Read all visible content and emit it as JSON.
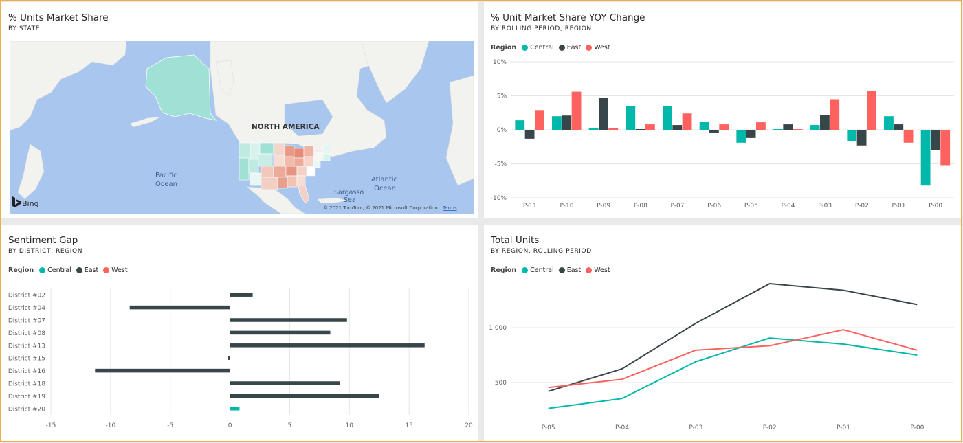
{
  "colors": {
    "central": "#01b8aa",
    "east": "#374649",
    "west": "#fd625e",
    "grid": "#e6e6e6",
    "axis_text": "#605e5c",
    "ocean": "#a8c6ee",
    "land": "#f2f2ef"
  },
  "map_tile": {
    "title": "% Units Market Share",
    "subtitle": "BY STATE",
    "labels": {
      "continent": "NORTH AMERICA",
      "pacific": [
        "Pacific",
        "Ocean"
      ],
      "atlantic": [
        "Atlantic",
        "Ocean"
      ],
      "sargasso": [
        "Sargasso",
        "Sea"
      ]
    },
    "brand": "Bing",
    "attribution": "© 2021 TomTom, © 2021 Microsoft Corporation",
    "terms": "Terms"
  },
  "legend": {
    "title": "Region",
    "items": [
      "Central",
      "East",
      "West"
    ]
  },
  "yoy_tile": {
    "title": "% Unit Market Share YOY Change",
    "subtitle": "BY ROLLING PERIOD, REGION"
  },
  "sentiment_tile": {
    "title": "Sentiment Gap",
    "subtitle": "BY DISTRICT, REGION"
  },
  "units_tile": {
    "title": "Total Units",
    "subtitle": "BY REGION, ROLLING PERIOD"
  },
  "chart_data": [
    {
      "id": "yoy",
      "type": "bar",
      "title": "% Unit Market Share YOY Change",
      "subtitle": "BY ROLLING PERIOD, REGION",
      "categories": [
        "P-11",
        "P-10",
        "P-09",
        "P-08",
        "P-07",
        "P-06",
        "P-05",
        "P-04",
        "P-03",
        "P-02",
        "P-01",
        "P-00"
      ],
      "series": [
        {
          "name": "Central",
          "values": [
            1.4,
            2.0,
            0.3,
            3.5,
            3.5,
            1.2,
            -1.9,
            0.1,
            0.7,
            -1.7,
            2.0,
            -8.2
          ]
        },
        {
          "name": "East",
          "values": [
            -1.3,
            2.1,
            4.7,
            0.1,
            0.7,
            -0.4,
            -1.2,
            0.8,
            2.2,
            -2.3,
            0.8,
            -3.0
          ]
        },
        {
          "name": "West",
          "values": [
            2.9,
            5.6,
            0.3,
            0.8,
            2.4,
            0.8,
            1.1,
            0.1,
            4.5,
            5.7,
            -1.9,
            -5.2
          ]
        }
      ],
      "ylim": [
        -10,
        10
      ],
      "yticks": [
        -10,
        -5,
        0,
        5,
        10
      ],
      "ytick_labels": [
        "-10%",
        "-5%",
        "0%",
        "5%",
        "10%"
      ]
    },
    {
      "id": "sentiment",
      "type": "bar",
      "orientation": "horizontal",
      "title": "Sentiment Gap",
      "subtitle": "BY DISTRICT, REGION",
      "categories": [
        "District #02",
        "District #04",
        "District #07",
        "District #08",
        "District #13",
        "District #15",
        "District #16",
        "District #18",
        "District #19",
        "District #20"
      ],
      "region_of_bar": [
        "East",
        "East",
        "East",
        "East",
        "East",
        "East",
        "East",
        "East",
        "East",
        "Central"
      ],
      "values": [
        1.9,
        -8.4,
        9.8,
        8.4,
        16.3,
        -0.2,
        -11.3,
        9.2,
        12.5,
        0.8
      ],
      "xlim": [
        -15,
        20
      ],
      "xticks": [
        -15,
        -10,
        -5,
        0,
        5,
        10,
        15,
        20
      ]
    },
    {
      "id": "units",
      "type": "line",
      "title": "Total Units",
      "subtitle": "BY REGION, ROLLING PERIOD",
      "x": [
        "P-05",
        "P-04",
        "P-03",
        "P-02",
        "P-01",
        "P-00"
      ],
      "series": [
        {
          "name": "Central",
          "values": [
            265,
            355,
            690,
            905,
            850,
            750
          ]
        },
        {
          "name": "East",
          "values": [
            420,
            625,
            1040,
            1400,
            1340,
            1210
          ]
        },
        {
          "name": "West",
          "values": [
            455,
            530,
            795,
            835,
            980,
            795
          ]
        }
      ],
      "ylim": [
        200,
        1500
      ],
      "yticks": [
        500,
        1000
      ],
      "ytick_labels": [
        "500",
        "1,000"
      ]
    }
  ]
}
